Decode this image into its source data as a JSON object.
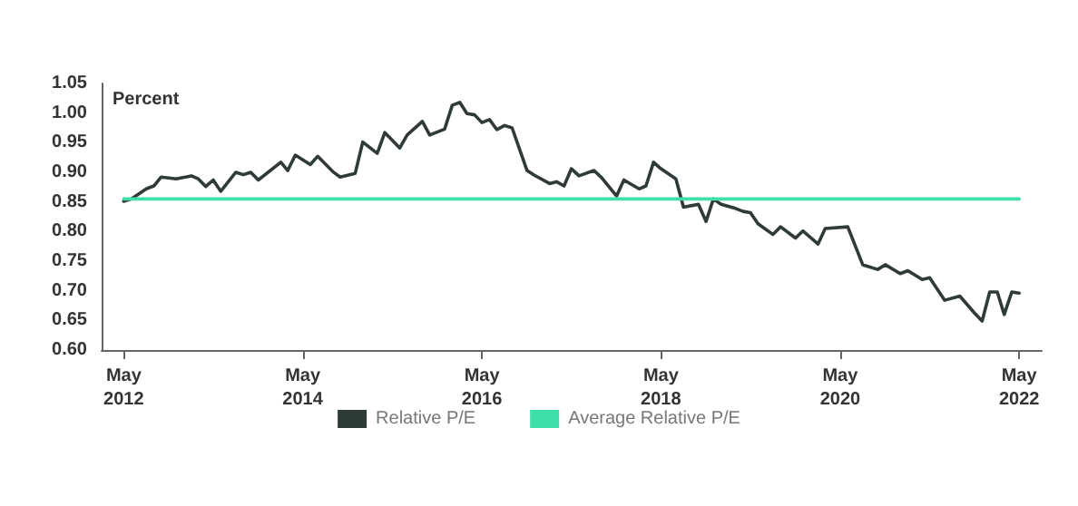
{
  "chart_data": {
    "type": "line",
    "ylabel": "Percent",
    "xlim": [
      "2012-02",
      "2022-08"
    ],
    "xticks": [
      {
        "value": "2012-05",
        "label": "May\n2012"
      },
      {
        "value": "2014-05",
        "label": "May\n2014"
      },
      {
        "value": "2016-05",
        "label": "May\n2016"
      },
      {
        "value": "2018-05",
        "label": "May\n2018"
      },
      {
        "value": "2020-05",
        "label": "May\n2020"
      },
      {
        "value": "2022-05",
        "label": "May\n2022"
      }
    ],
    "ylim": [
      0.6,
      1.05
    ],
    "yticks": [
      {
        "value": 0.6,
        "label": "0.60"
      },
      {
        "value": 0.65,
        "label": "0.65"
      },
      {
        "value": 0.7,
        "label": "0.70"
      },
      {
        "value": 0.75,
        "label": "0.75"
      },
      {
        "value": 0.8,
        "label": "0.80"
      },
      {
        "value": 0.85,
        "label": "0.85"
      },
      {
        "value": 0.9,
        "label": "0.90"
      },
      {
        "value": 0.95,
        "label": "0.95"
      },
      {
        "value": 1.0,
        "label": "1.00"
      },
      {
        "value": 1.05,
        "label": "1.05"
      }
    ],
    "grid": false,
    "legend": "bottom",
    "marker": "none",
    "line_style": "solid",
    "series": [
      {
        "name": "Relative P/E",
        "color": "#2f3b36",
        "x": [
          "2012-05",
          "2012-06",
          "2012-08",
          "2012-09",
          "2012-10",
          "2012-12",
          "2013-02",
          "2013-03",
          "2013-04",
          "2013-05",
          "2013-06",
          "2013-08",
          "2013-09",
          "2013-10",
          "2013-11",
          "2014-02",
          "2014-03",
          "2014-04",
          "2014-06",
          "2014-07",
          "2014-09",
          "2014-10",
          "2014-12",
          "2015-01",
          "2015-03",
          "2015-04",
          "2015-06",
          "2015-07",
          "2015-09",
          "2015-10",
          "2015-12",
          "2016-01",
          "2016-02",
          "2016-03",
          "2016-04",
          "2016-05",
          "2016-06",
          "2016-07",
          "2016-08",
          "2016-09",
          "2016-11",
          "2016-12",
          "2017-02",
          "2017-03",
          "2017-04",
          "2017-05",
          "2017-06",
          "2017-08",
          "2017-09",
          "2017-11",
          "2017-12",
          "2018-02",
          "2018-03",
          "2018-04",
          "2018-05",
          "2018-07",
          "2018-08",
          "2018-10",
          "2018-11",
          "2018-12",
          "2019-01",
          "2019-03",
          "2019-04",
          "2019-05",
          "2019-06",
          "2019-08",
          "2019-09",
          "2019-11",
          "2019-12",
          "2020-02",
          "2020-03",
          "2020-06",
          "2020-08",
          "2020-10",
          "2020-11",
          "2021-01",
          "2021-02",
          "2021-04",
          "2021-05",
          "2021-07",
          "2021-09",
          "2021-11",
          "2021-12",
          "2022-01",
          "2022-02",
          "2022-03",
          "2022-04",
          "2022-05"
        ],
        "values": [
          0.851,
          0.855,
          0.872,
          0.877,
          0.892,
          0.889,
          0.894,
          0.889,
          0.876,
          0.887,
          0.868,
          0.9,
          0.896,
          0.9,
          0.887,
          0.917,
          0.903,
          0.929,
          0.913,
          0.927,
          0.901,
          0.892,
          0.898,
          0.951,
          0.932,
          0.967,
          0.941,
          0.963,
          0.986,
          0.963,
          0.973,
          1.013,
          1.018,
          0.999,
          0.997,
          0.984,
          0.989,
          0.972,
          0.979,
          0.975,
          0.903,
          0.895,
          0.881,
          0.884,
          0.877,
          0.906,
          0.894,
          0.903,
          0.891,
          0.86,
          0.887,
          0.872,
          0.877,
          0.917,
          0.906,
          0.889,
          0.841,
          0.846,
          0.817,
          0.855,
          0.846,
          0.839,
          0.834,
          0.832,
          0.813,
          0.795,
          0.808,
          0.789,
          0.801,
          0.779,
          0.805,
          0.808,
          0.744,
          0.736,
          0.744,
          0.729,
          0.734,
          0.719,
          0.722,
          0.684,
          0.691,
          0.662,
          0.649,
          0.698,
          0.698,
          0.66,
          0.698,
          0.696
        ]
      },
      {
        "name": "Average Relative P/E",
        "color": "#3ee0a8",
        "x": [
          "2012-05",
          "2022-05"
        ],
        "values": [
          0.855,
          0.855
        ]
      }
    ]
  }
}
